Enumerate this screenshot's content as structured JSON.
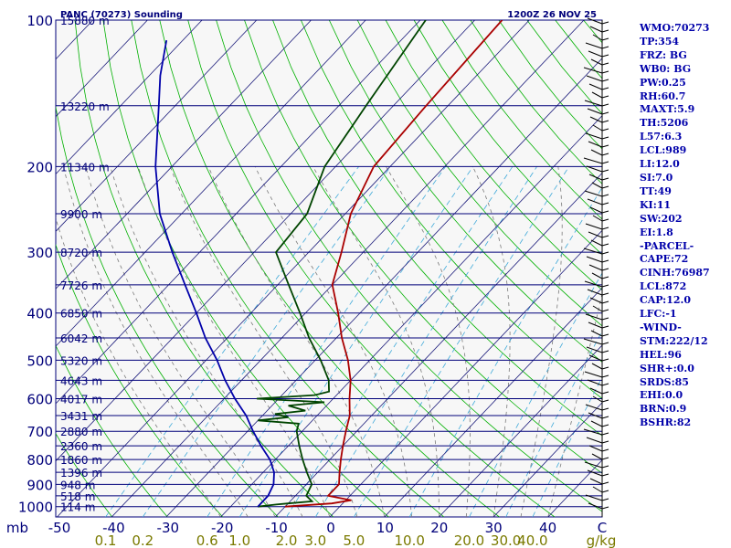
{
  "chart_data": {
    "type": "line",
    "title": "PANC (70273) Sounding",
    "datetime": "1200Z 26 NOV 25",
    "units_label": "g/kg",
    "pressure_ticks": [
      100,
      200,
      300,
      400,
      500,
      600,
      700,
      800,
      900,
      1000
    ],
    "extra_pressure_lines": [
      150,
      250,
      350,
      450,
      550,
      650,
      750,
      850,
      950
    ],
    "pressure_unit_label": "mb",
    "temperature_ticks": [
      "-50",
      "-40",
      "-30",
      "-20",
      "-10",
      "0",
      "10",
      "20",
      "30",
      "40",
      "C"
    ],
    "mixing_ratio_ticks": [
      "0.1",
      "0.2",
      "0.6",
      "1.0",
      "2.0",
      "3.0",
      "5.0",
      "10.0",
      "20.0",
      "30.0",
      "40.0"
    ],
    "height_labels": [
      {
        "p": 100,
        "label": "15880 m"
      },
      {
        "p": 150,
        "label": "13220 m"
      },
      {
        "p": 200,
        "label": "11340 m"
      },
      {
        "p": 250,
        "label": "9900 m"
      },
      {
        "p": 300,
        "label": "8720 m"
      },
      {
        "p": 350,
        "label": "7726 m"
      },
      {
        "p": 400,
        "label": "6850 m"
      },
      {
        "p": 450,
        "label": "6042 m"
      },
      {
        "p": 500,
        "label": "5320 m"
      },
      {
        "p": 550,
        "label": "4643 m"
      },
      {
        "p": 600,
        "label": "4017 m"
      },
      {
        "p": 650,
        "label": "3431 m"
      },
      {
        "p": 700,
        "label": "2880 m"
      },
      {
        "p": 750,
        "label": "2360 m"
      },
      {
        "p": 800,
        "label": "1860 m"
      },
      {
        "p": 850,
        "label": "1396 m"
      },
      {
        "p": 900,
        "label": "948 m"
      },
      {
        "p": 950,
        "label": "518 m"
      },
      {
        "p": 1000,
        "label": "114 m"
      }
    ],
    "series": [
      {
        "color": "#aa0000",
        "points": [
          [
            1000,
            -10
          ],
          [
            985,
            -2
          ],
          [
            970,
            1
          ],
          [
            950,
            -4
          ],
          [
            900,
            -4
          ],
          [
            850,
            -6
          ],
          [
            800,
            -8
          ],
          [
            750,
            -10
          ],
          [
            700,
            -12
          ],
          [
            650,
            -14
          ],
          [
            600,
            -17
          ],
          [
            550,
            -20
          ],
          [
            500,
            -24
          ],
          [
            450,
            -29
          ],
          [
            400,
            -34
          ],
          [
            350,
            -40
          ],
          [
            300,
            -44
          ],
          [
            250,
            -49
          ],
          [
            200,
            -53
          ],
          [
            150,
            -54
          ],
          [
            100,
            -55
          ]
        ]
      },
      {
        "color": "#004400",
        "points": [
          [
            1000,
            -15
          ],
          [
            990,
            -12
          ],
          [
            985,
            -10
          ],
          [
            975,
            -6
          ],
          [
            950,
            -8
          ],
          [
            900,
            -9
          ],
          [
            850,
            -12
          ],
          [
            800,
            -15
          ],
          [
            750,
            -18
          ],
          [
            700,
            -21
          ],
          [
            675,
            -22
          ],
          [
            665,
            -30
          ],
          [
            655,
            -25
          ],
          [
            645,
            -28
          ],
          [
            635,
            -23
          ],
          [
            620,
            -27
          ],
          [
            610,
            -21
          ],
          [
            600,
            -34
          ],
          [
            590,
            -24
          ],
          [
            580,
            -22
          ],
          [
            565,
            -23
          ],
          [
            550,
            -24
          ],
          [
            500,
            -29
          ],
          [
            450,
            -35
          ],
          [
            400,
            -41
          ],
          [
            350,
            -48
          ],
          [
            300,
            -56
          ],
          [
            250,
            -57
          ],
          [
            200,
            -62
          ],
          [
            150,
            -65
          ],
          [
            100,
            -69
          ]
        ]
      },
      {
        "color": "#0000aa",
        "points": [
          [
            1000,
            -15
          ],
          [
            950,
            -15
          ],
          [
            900,
            -16
          ],
          [
            850,
            -18
          ],
          [
            800,
            -21
          ],
          [
            750,
            -25
          ],
          [
            700,
            -29
          ],
          [
            650,
            -33
          ],
          [
            600,
            -38
          ],
          [
            550,
            -43
          ],
          [
            500,
            -48
          ],
          [
            450,
            -54
          ],
          [
            400,
            -60
          ],
          [
            350,
            -67
          ],
          [
            300,
            -75
          ],
          [
            250,
            -84
          ],
          [
            200,
            -93
          ],
          [
            150,
            -103
          ],
          [
            130,
            -108
          ],
          [
            110,
            -113
          ]
        ]
      }
    ]
  },
  "indices": [
    "WMO:70273",
    "TP:354",
    "FRZ: BG",
    "WB0: BG",
    "PW:0.25",
    "RH:60.7",
    "MAXT:5.9",
    "TH:5206",
    "L57:6.3",
    "LCL:989",
    "LI:12.0",
    "SI:7.0",
    "TT:49",
    "KI:11",
    "SW:202",
    "EI:1.8",
    "-PARCEL-",
    "CAPE:72",
    "CINH:76987",
    "LCL:872",
    "CAP:12.0",
    "LFC:-1",
    "-WIND-",
    "STM:222/12",
    "HEL:96",
    "SHR+:0.0",
    "SRDS:85",
    "EHI:0.0",
    "BRN:0.9",
    "BSHR:82"
  ],
  "colors": {
    "frame": "#00007a",
    "isobar": "#00007a",
    "isotherm": "#1a1a7a",
    "dry_adiabat": "#00b000",
    "moist_adiabat": "#7a7a7a",
    "mixing_ratio": "#3fa9d9",
    "temperature": "#aa0000",
    "dewpoint": "#004400",
    "parcel": "#0000aa",
    "wind_barb": "#000000"
  }
}
